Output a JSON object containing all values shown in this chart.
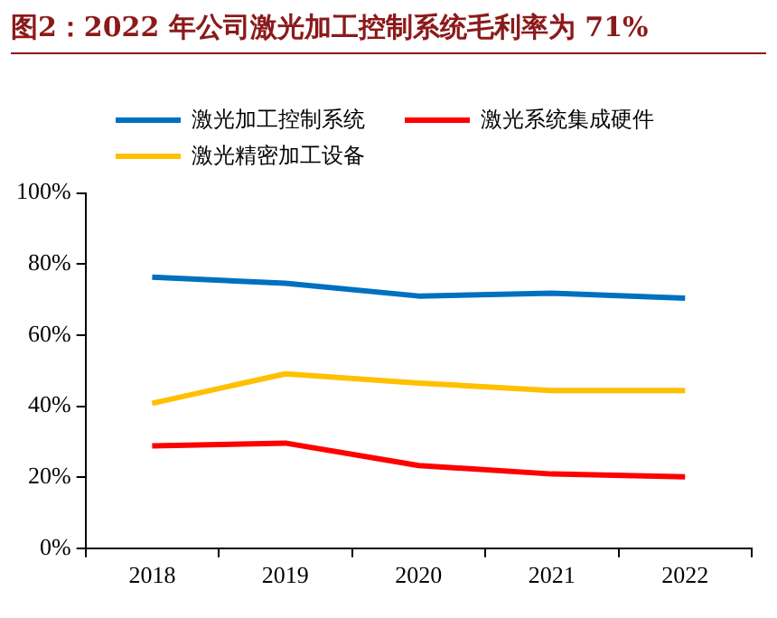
{
  "chart_data": {
    "type": "line",
    "title": "图2：2022 年公司激光加工控制系统毛利率为 71%",
    "categories": [
      "2018",
      "2019",
      "2020",
      "2021",
      "2022"
    ],
    "series": [
      {
        "name": "激光加工控制系统",
        "color": "#0070c0",
        "values": [
          76.3,
          74.6,
          71.0,
          71.8,
          70.4
        ]
      },
      {
        "name": "激光系统集成硬件",
        "color": "#ff0000",
        "values": [
          28.8,
          29.6,
          23.3,
          20.9,
          20.1
        ]
      },
      {
        "name": "激光精密加工设备",
        "color": "#ffc000",
        "values": [
          40.8,
          49.1,
          46.5,
          44.4,
          44.4
        ]
      }
    ],
    "ylim": [
      0,
      100
    ],
    "yticks": [
      {
        "value": 0,
        "label": "0%"
      },
      {
        "value": 20,
        "label": "20%"
      },
      {
        "value": 40,
        "label": "40%"
      },
      {
        "value": 60,
        "label": "60%"
      },
      {
        "value": 80,
        "label": "80%"
      },
      {
        "value": 100,
        "label": "100%"
      }
    ],
    "grid": false,
    "legend": "top left",
    "marker": "none",
    "line_style": "solid"
  }
}
